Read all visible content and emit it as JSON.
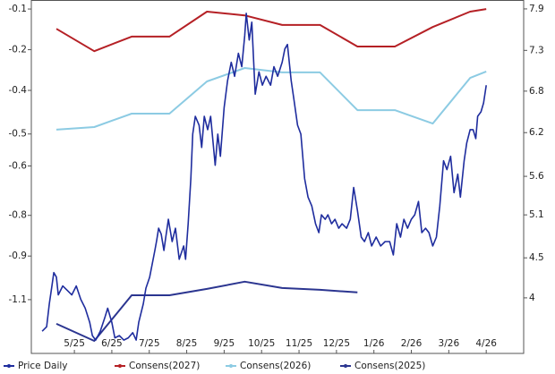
{
  "chart_data": {
    "type": "line",
    "xticks": [
      {
        "value": 1,
        "label": "5/25"
      },
      {
        "value": 2,
        "label": "6/25"
      },
      {
        "value": 3,
        "label": "7/25"
      },
      {
        "value": 4,
        "label": "8/25"
      },
      {
        "value": 5,
        "label": "9/25"
      },
      {
        "value": 6,
        "label": "10/25"
      },
      {
        "value": 7,
        "label": "11/25"
      },
      {
        "value": 8,
        "label": "12/25"
      },
      {
        "value": 9,
        "label": "1/26"
      },
      {
        "value": 10,
        "label": "2/26"
      },
      {
        "value": 11,
        "label": "3/26"
      },
      {
        "value": 12,
        "label": "4/26"
      }
    ],
    "xlim": [
      -0.15,
      13
    ],
    "ylim": [
      -1.285,
      -0.069
    ],
    "yticks": [
      -0.1,
      {
        "value": -0.24,
        "label": "-0.2"
      },
      {
        "value": -0.38,
        "label": "-0.4"
      },
      {
        "value": -0.53,
        "label": "-0.5"
      },
      {
        "value": -0.64,
        "label": "-0.6"
      },
      {
        "value": -0.81,
        "label": "-0.8"
      },
      {
        "value": -0.95,
        "label": "-0.9"
      },
      -1.1
    ],
    "y2lim": [
      3.25,
      8.02
    ],
    "y2ticks": [
      7.9,
      {
        "value": 7.34,
        "label": "7.3"
      },
      {
        "value": 6.79,
        "label": "6.8"
      },
      {
        "value": 6.23,
        "label": "6.2"
      },
      {
        "value": 5.64,
        "label": "5.6"
      },
      {
        "value": 5.12,
        "label": "5.1"
      },
      {
        "value": 4.54,
        "label": "4.5"
      },
      4.0
    ],
    "series": [
      {
        "name": "Price Daily",
        "color": "#1f2d9e",
        "axis": "y2",
        "x": [
          0.14,
          0.26,
          0.33,
          0.4,
          0.45,
          0.52,
          0.57,
          0.69,
          0.81,
          0.93,
          1.05,
          1.17,
          1.29,
          1.41,
          1.48,
          1.57,
          1.69,
          1.81,
          1.89,
          2.0,
          2.08,
          2.2,
          2.32,
          2.44,
          2.56,
          2.65,
          2.72,
          2.84,
          2.91,
          3.01,
          3.08,
          3.15,
          3.2,
          3.25,
          3.32,
          3.39,
          3.44,
          3.51,
          3.61,
          3.7,
          3.8,
          3.92,
          3.97,
          4.04,
          4.11,
          4.16,
          4.23,
          4.33,
          4.4,
          4.47,
          4.56,
          4.64,
          4.76,
          4.83,
          4.9,
          5.0,
          5.09,
          5.19,
          5.28,
          5.38,
          5.47,
          5.55,
          5.59,
          5.67,
          5.74,
          5.83,
          5.93,
          6.02,
          6.12,
          6.24,
          6.33,
          6.43,
          6.55,
          6.62,
          6.69,
          6.79,
          6.86,
          6.96,
          7.05,
          7.15,
          7.24,
          7.34,
          7.44,
          7.53,
          7.6,
          7.7,
          7.77,
          7.87,
          7.96,
          8.06,
          8.15,
          8.27,
          8.37,
          8.46,
          8.56,
          8.66,
          8.75,
          8.85,
          8.94,
          9.06,
          9.18,
          9.3,
          9.42,
          9.52,
          9.61,
          9.71,
          9.8,
          9.9,
          10.0,
          10.09,
          10.19,
          10.28,
          10.38,
          10.47,
          10.57,
          10.67,
          10.76,
          10.86,
          10.95,
          11.05,
          11.14,
          11.24,
          11.31,
          11.41,
          11.48,
          11.57,
          11.65,
          11.72,
          11.77,
          11.86,
          11.93,
          12.0
        ],
        "values": [
          3.55,
          3.61,
          3.92,
          4.16,
          4.34,
          4.28,
          4.04,
          4.16,
          4.1,
          4.04,
          4.16,
          3.98,
          3.86,
          3.67,
          3.49,
          3.43,
          3.55,
          3.73,
          3.86,
          3.67,
          3.46,
          3.49,
          3.43,
          3.46,
          3.53,
          3.43,
          3.67,
          3.92,
          4.13,
          4.28,
          4.46,
          4.64,
          4.78,
          4.94,
          4.86,
          4.64,
          4.82,
          5.06,
          4.76,
          4.94,
          4.52,
          4.7,
          4.52,
          5.0,
          5.61,
          6.21,
          6.45,
          6.33,
          6.03,
          6.45,
          6.27,
          6.45,
          5.79,
          6.21,
          5.91,
          6.57,
          6.93,
          7.18,
          6.99,
          7.3,
          7.12,
          7.54,
          7.84,
          7.48,
          7.72,
          6.75,
          7.05,
          6.87,
          6.99,
          6.87,
          7.12,
          6.99,
          7.18,
          7.36,
          7.42,
          6.93,
          6.69,
          6.33,
          6.21,
          5.61,
          5.36,
          5.24,
          5.0,
          4.88,
          5.12,
          5.06,
          5.12,
          5.0,
          5.06,
          4.94,
          5.0,
          4.94,
          5.06,
          5.49,
          5.18,
          4.82,
          4.76,
          4.88,
          4.7,
          4.82,
          4.7,
          4.76,
          4.76,
          4.58,
          5.0,
          4.82,
          5.06,
          4.94,
          5.06,
          5.12,
          5.3,
          4.88,
          4.94,
          4.88,
          4.7,
          4.82,
          5.24,
          5.85,
          5.73,
          5.91,
          5.42,
          5.67,
          5.36,
          5.85,
          6.09,
          6.27,
          6.27,
          6.15,
          6.45,
          6.51,
          6.63,
          6.87
        ]
      },
      {
        "name": "Consens(2027)",
        "color": "#b52025",
        "x": [
          0.52,
          1.53,
          2.53,
          3.54,
          4.54,
          5.55,
          6.55,
          7.56,
          8.56,
          9.56,
          10.57,
          11.57,
          12.0
        ],
        "values": [
          -0.168,
          -0.245,
          -0.195,
          -0.195,
          -0.109,
          -0.122,
          -0.155,
          -0.155,
          -0.229,
          -0.229,
          -0.162,
          -0.109,
          -0.1
        ]
      },
      {
        "name": "Consens(2026)",
        "color": "#8ccbe3",
        "x": [
          0.52,
          1.53,
          2.53,
          3.54,
          4.54,
          5.55,
          6.55,
          7.56,
          8.56,
          9.56,
          10.57,
          11.57,
          12.0
        ],
        "values": [
          -0.515,
          -0.506,
          -0.46,
          -0.46,
          -0.349,
          -0.303,
          -0.318,
          -0.318,
          -0.448,
          -0.448,
          -0.494,
          -0.337,
          -0.315
        ]
      },
      {
        "name": "Consens(2025)",
        "color": "#2b3590",
        "x": [
          0.52,
          1.53,
          2.53,
          3.54,
          4.54,
          5.55,
          6.55,
          7.56,
          8.56
        ],
        "values": [
          -1.183,
          -1.242,
          -1.085,
          -1.085,
          -1.063,
          -1.038,
          -1.06,
          -1.066,
          -1.075
        ]
      }
    ]
  }
}
